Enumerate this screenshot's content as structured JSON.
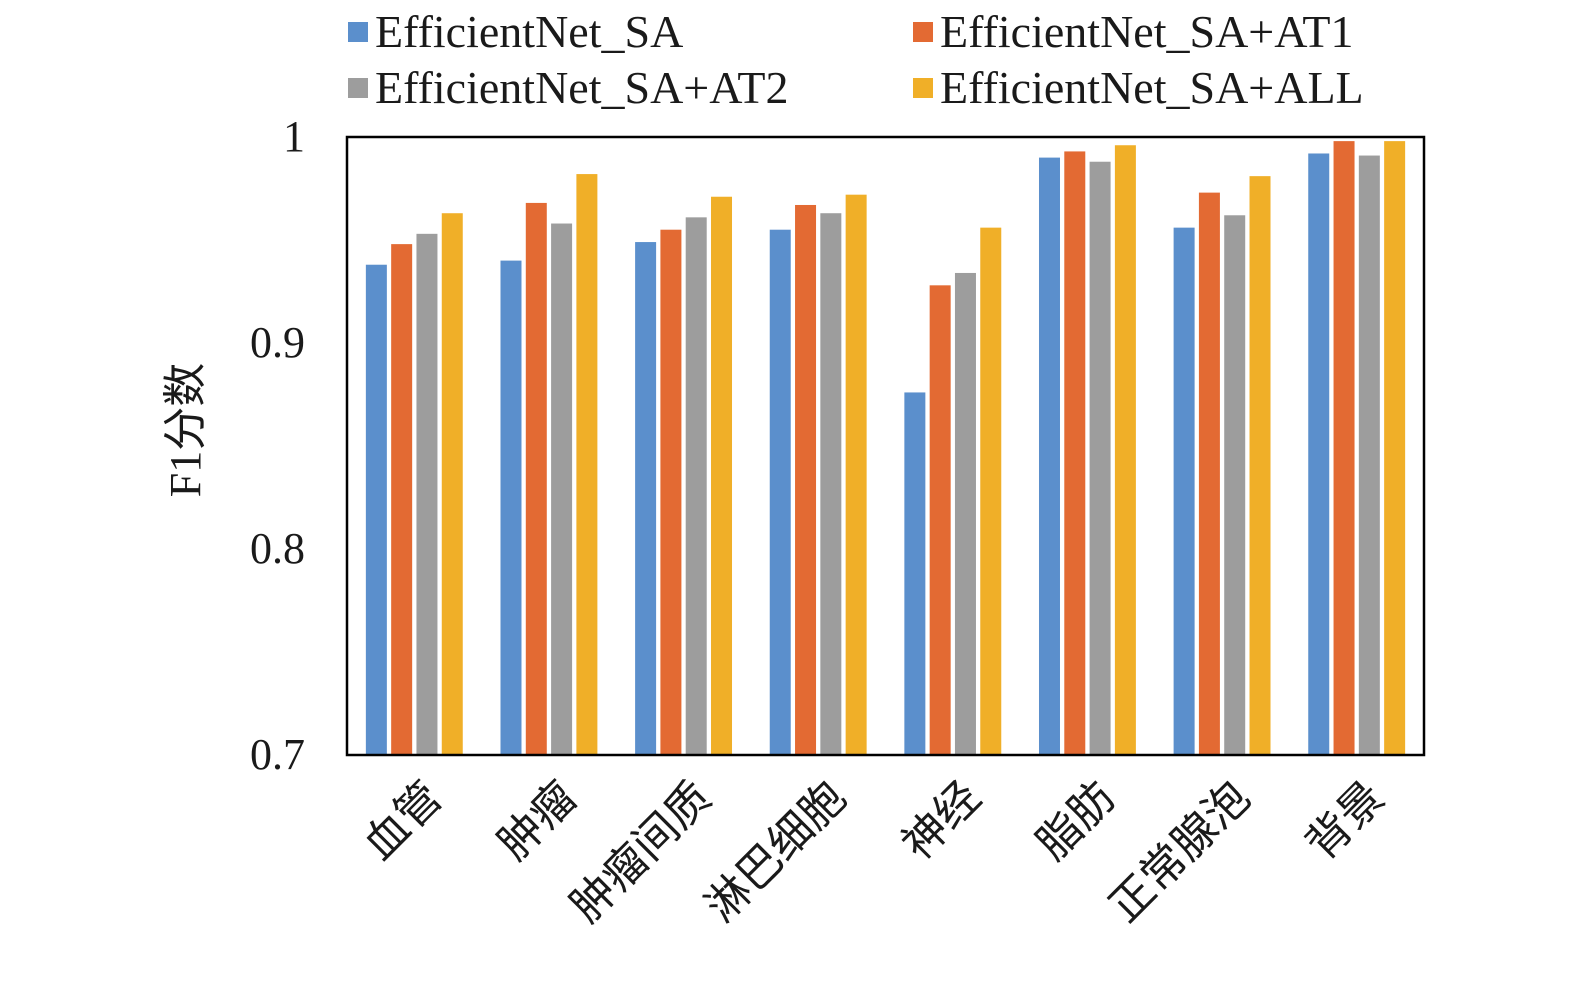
{
  "chart_data": {
    "type": "bar",
    "title": "",
    "xlabel": "",
    "ylabel": "F1分数",
    "ylim": [
      0.7,
      1.0
    ],
    "yticks": [
      "0.7",
      "0.8",
      "0.9",
      "1"
    ],
    "grid": false,
    "legend": "top",
    "categories": [
      "血管",
      "肿瘤",
      "肿瘤间质",
      "淋巴细胞",
      "神经",
      "脂肪",
      "正常腺泡",
      "背景"
    ],
    "series": [
      {
        "name": "EfficientNet_SA",
        "color": "#5b8fcc",
        "values": [
          0.938,
          0.94,
          0.949,
          0.955,
          0.876,
          0.99,
          0.956,
          0.992
        ]
      },
      {
        "name": "EfficientNet_SA+AT1",
        "color": "#e36a33",
        "values": [
          0.948,
          0.968,
          0.955,
          0.967,
          0.928,
          0.993,
          0.973,
          0.998
        ]
      },
      {
        "name": "EfficientNet_SA+AT2",
        "color": "#9d9d9d",
        "values": [
          0.953,
          0.958,
          0.961,
          0.963,
          0.934,
          0.988,
          0.962,
          0.991
        ]
      },
      {
        "name": "EfficientNet_SA+ALL",
        "color": "#f0af28",
        "values": [
          0.963,
          0.982,
          0.971,
          0.972,
          0.956,
          0.996,
          0.981,
          0.998
        ]
      }
    ]
  }
}
